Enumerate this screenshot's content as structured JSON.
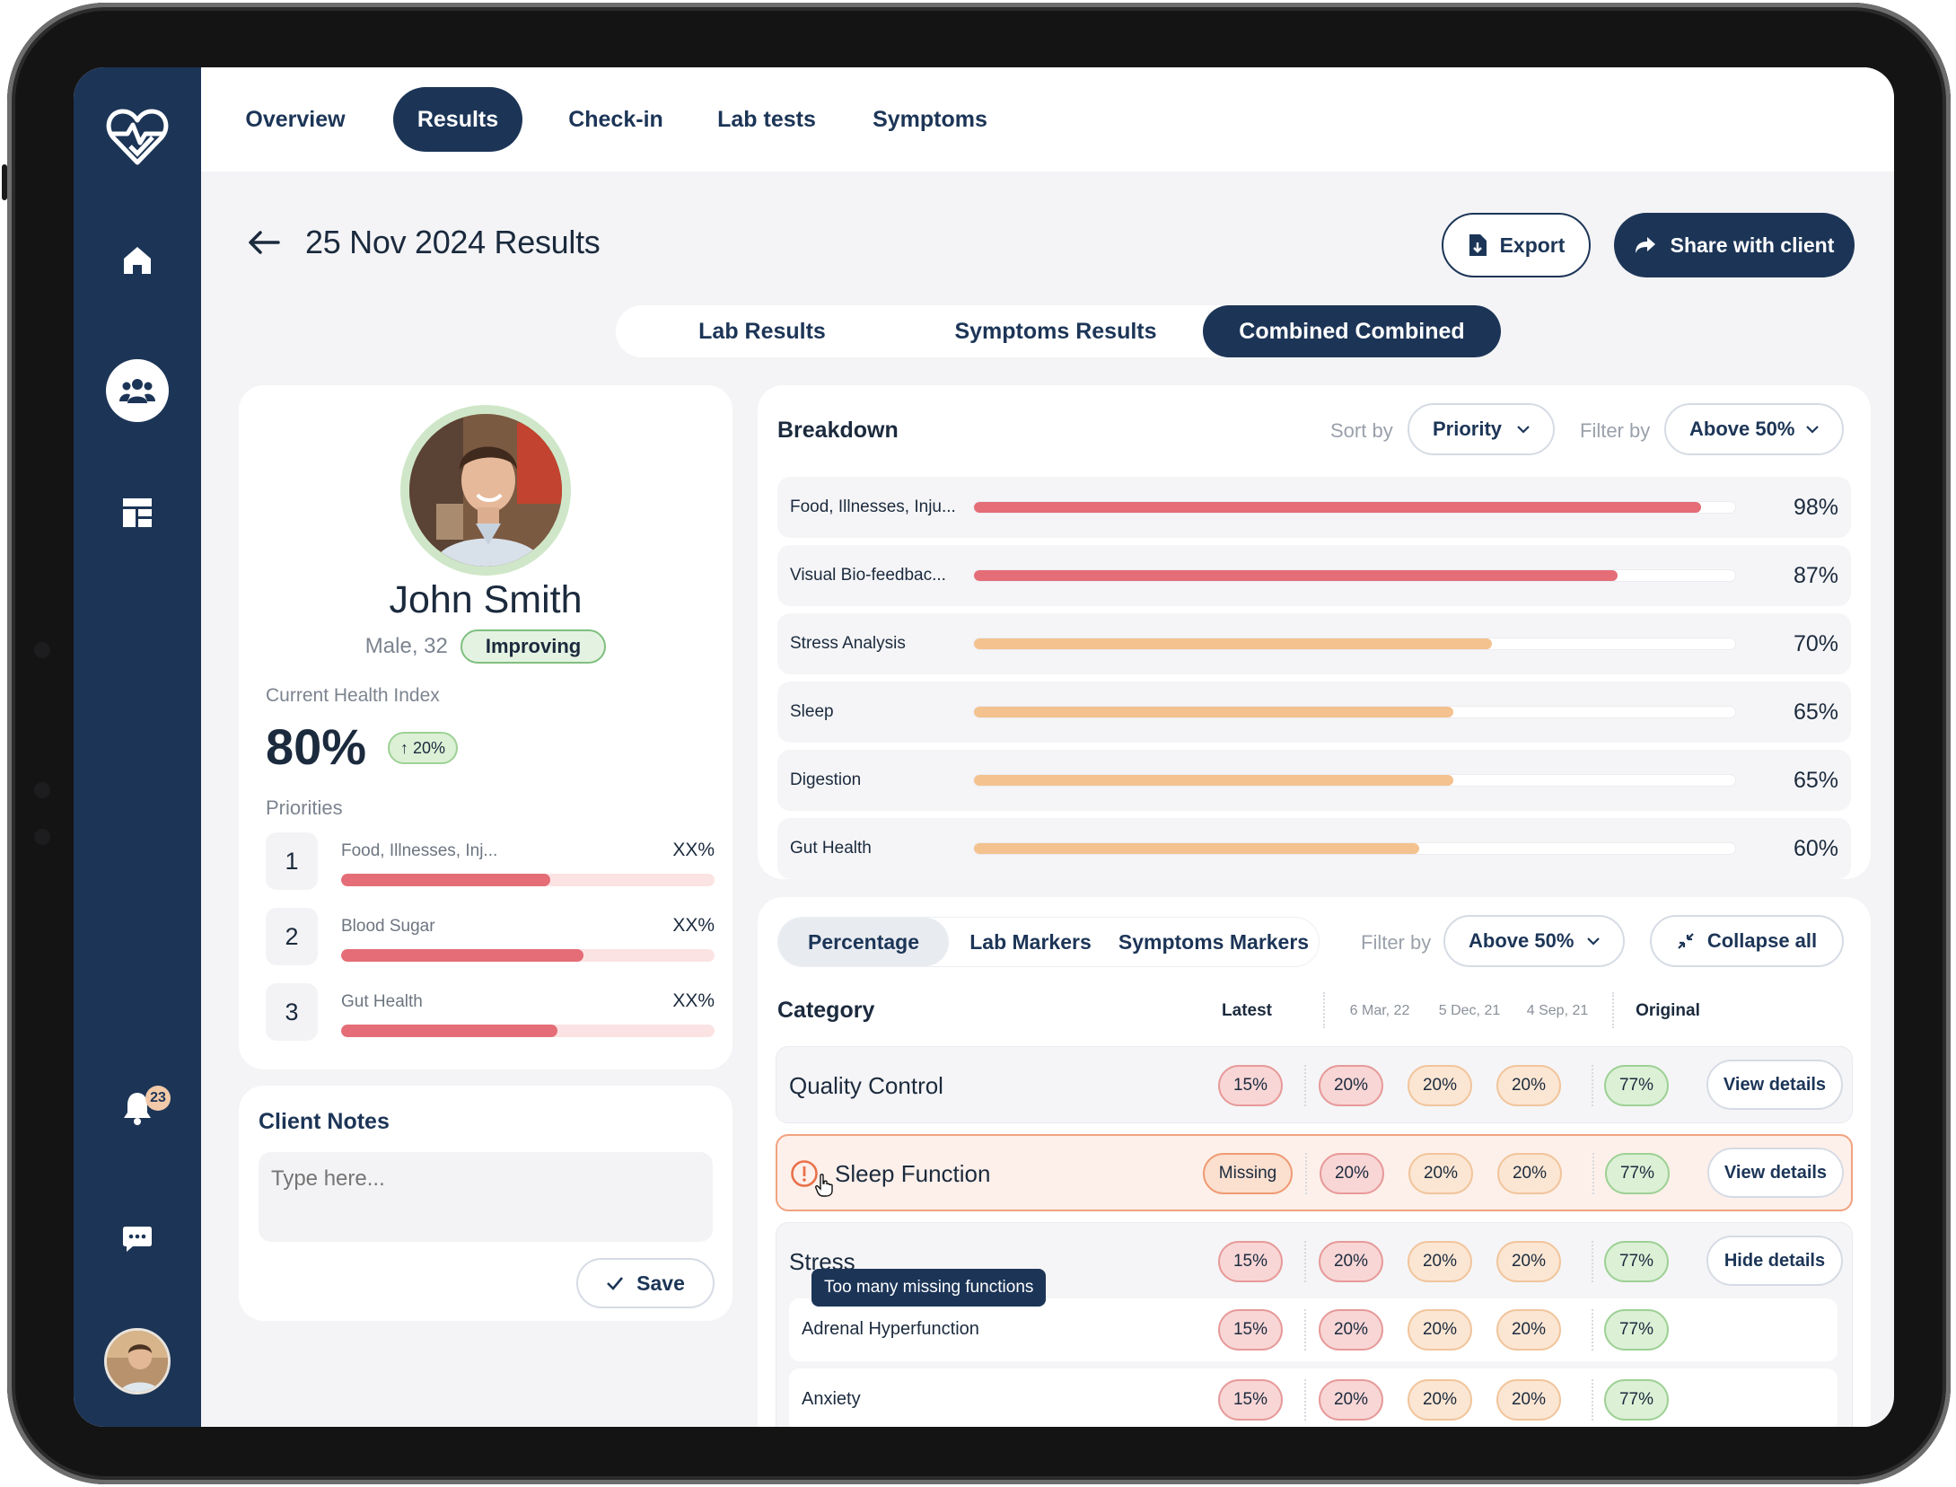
{
  "nav": {
    "tabs": [
      {
        "label": "Overview"
      },
      {
        "label": "Results"
      },
      {
        "label": "Check-in"
      },
      {
        "label": "Lab tests"
      },
      {
        "label": "Symptoms"
      }
    ],
    "active": "Results"
  },
  "sidebar": {
    "items": [
      "heart-logo",
      "home",
      "clients",
      "dashboard"
    ],
    "notification_count": "23"
  },
  "header": {
    "title": "25 Nov 2024 Results",
    "export_label": "Export",
    "share_label": "Share with client"
  },
  "segment": {
    "items": [
      "Lab Results",
      "Symptoms Results",
      "Combined Combined"
    ],
    "active": "Combined Combined"
  },
  "client": {
    "name": "John Smith",
    "meta": "Male, 32",
    "status": "Improving",
    "health_index_label": "Current Health Index",
    "health_index": "80%",
    "change": "↑ 20%",
    "priorities_label": "Priorities",
    "priorities": [
      {
        "num": "1",
        "label": "Food, Illnesses, Inj...",
        "value": "XX%",
        "fill": 0.56
      },
      {
        "num": "2",
        "label": "Blood Sugar",
        "value": "XX%",
        "fill": 0.65
      },
      {
        "num": "3",
        "label": "Gut Health",
        "value": "XX%",
        "fill": 0.58
      }
    ]
  },
  "notes": {
    "title": "Client Notes",
    "placeholder": "Type here...",
    "save_label": "Save"
  },
  "breakdown": {
    "title": "Breakdown",
    "sort_label": "Sort by",
    "sort_value": "Priority",
    "filter_label": "Filter by",
    "filter_value": "Above 50%",
    "rows": [
      {
        "label": "Food, Illnesses, Inju...",
        "value": "98%",
        "fill": 0.955,
        "color": "#e46d77"
      },
      {
        "label": "Visual Bio-feedbac...",
        "value": "87%",
        "fill": 0.845,
        "color": "#e46d77"
      },
      {
        "label": "Stress Analysis",
        "value": "70%",
        "fill": 0.68,
        "color": "#f3c28f"
      },
      {
        "label": "Sleep",
        "value": "65%",
        "fill": 0.63,
        "color": "#f3c28f"
      },
      {
        "label": "Digestion",
        "value": "65%",
        "fill": 0.63,
        "color": "#f3c28f"
      },
      {
        "label": "Gut Health",
        "value": "60%",
        "fill": 0.585,
        "color": "#f3c28f"
      }
    ]
  },
  "table": {
    "tabs": [
      "Percentage",
      "Lab Markers",
      "Symptoms Markers"
    ],
    "active_tab": "Percentage",
    "filter_label": "Filter by",
    "filter_value": "Above 50%",
    "collapse_label": "Collapse all",
    "header": {
      "category": "Category",
      "latest": "Latest",
      "h1": "6 Mar, 22",
      "h2": "5 Dec, 21",
      "h3": "4 Sep, 21",
      "original": "Original"
    },
    "rows": [
      {
        "name": "Quality Control",
        "latest": "15%",
        "v1": "20%",
        "v2": "20%",
        "v3": "20%",
        "original": "77%",
        "action": "View details"
      },
      {
        "name": "Sleep Function",
        "latest": "Missing",
        "v1": "20%",
        "v2": "20%",
        "v3": "20%",
        "original": "77%",
        "action": "View details"
      },
      {
        "name": "Stress",
        "latest": "15%",
        "v1": "20%",
        "v2": "20%",
        "v3": "20%",
        "original": "77%",
        "action": "Hide details"
      }
    ],
    "sub_rows": [
      {
        "name": "Adrenal Hyperfunction",
        "latest": "15%",
        "v1": "20%",
        "v2": "20%",
        "v3": "20%",
        "original": "77%"
      },
      {
        "name": "Anxiety",
        "latest": "15%",
        "v1": "20%",
        "v2": "20%",
        "v3": "20%",
        "original": "77%"
      }
    ],
    "tooltip": "Too many missing functions"
  }
}
